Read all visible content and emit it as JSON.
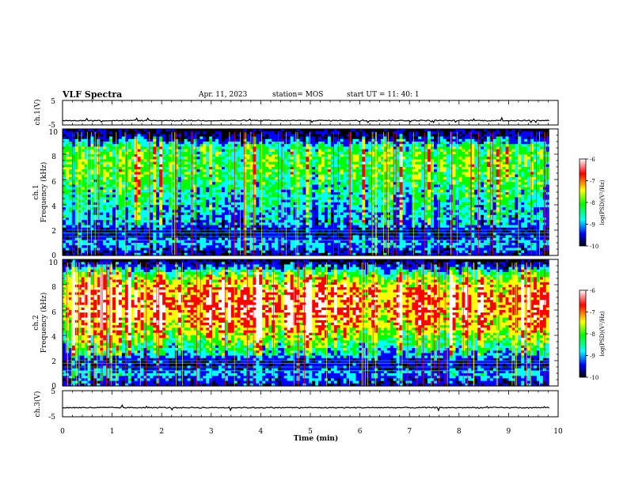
{
  "header": {
    "title": "VLF Spectra",
    "date": "Apr. 11, 2023",
    "station": "station= MOS",
    "start": "start  UT =   11: 40: 1"
  },
  "chart_data": [
    {
      "type": "line",
      "name": "ch1-waveform",
      "ylabel": "ch.1(V)",
      "ylim": [
        -5,
        5
      ],
      "yticks": [
        "5",
        "-5"
      ],
      "baseline": -3.2
    },
    {
      "type": "heatmap",
      "name": "ch1-spectrogram",
      "ylabel_line1": "ch.1",
      "ylabel_line2": "Frequency  (kHz)",
      "ylim": [
        0,
        10
      ],
      "yticks": [
        "0",
        "2",
        "4",
        "6",
        "8",
        "10"
      ],
      "xlim": [
        0,
        10
      ],
      "cbar_ticks": [
        "-6",
        "-7",
        "-8",
        "-9",
        "-10"
      ],
      "cbar_label": "log(PSD)(V²/Hz)",
      "cbar_range": [
        -10,
        -6
      ],
      "level_profile": [
        [
          0,
          -9.6
        ],
        [
          0.5,
          -9.3
        ],
        [
          1.0,
          -8.9
        ],
        [
          1.5,
          -9.5
        ],
        [
          2.0,
          -9.6
        ],
        [
          2.4,
          -9.0
        ],
        [
          3.0,
          -8.9
        ],
        [
          5.0,
          -8.4
        ],
        [
          6.5,
          -8.0
        ],
        [
          8.0,
          -8.0
        ],
        [
          8.6,
          -8.3
        ],
        [
          9.3,
          -9.6
        ],
        [
          10,
          -10
        ]
      ]
    },
    {
      "type": "heatmap",
      "name": "ch2-spectrogram",
      "ylabel_line1": "ch.2",
      "ylabel_line2": "Frequency  (kHz)",
      "ylim": [
        0,
        10
      ],
      "yticks": [
        "0",
        "2",
        "4",
        "6",
        "8",
        "10"
      ],
      "xlim": [
        0,
        10
      ],
      "cbar_ticks": [
        "-6",
        "-7",
        "-8",
        "-9",
        "-10"
      ],
      "cbar_label": "log(PSD)(V²/Hz)",
      "cbar_range": [
        -10,
        -6
      ],
      "level_profile": [
        [
          0,
          -9.6
        ],
        [
          0.5,
          -9.2
        ],
        [
          1.0,
          -8.9
        ],
        [
          1.5,
          -9.5
        ],
        [
          2.0,
          -9.6
        ],
        [
          2.4,
          -8.8
        ],
        [
          3.0,
          -8.3
        ],
        [
          4.0,
          -7.6
        ],
        [
          5.0,
          -7.0
        ],
        [
          6.0,
          -6.7
        ],
        [
          7.0,
          -6.7
        ],
        [
          8.0,
          -7.1
        ],
        [
          8.8,
          -7.9
        ],
        [
          9.4,
          -9.2
        ],
        [
          10,
          -10
        ]
      ]
    },
    {
      "type": "line",
      "name": "ch3-waveform",
      "ylabel": "ch.3(V)",
      "ylim": [
        -5,
        5
      ],
      "yticks": [
        "5",
        "-5"
      ],
      "baseline": -1.5
    }
  ],
  "xaxis": {
    "label": "Time  (min)",
    "ticks": [
      "0",
      "1",
      "2",
      "3",
      "4",
      "5",
      "6",
      "7",
      "8",
      "9",
      "10"
    ],
    "data_end": 9.82
  },
  "colormap": [
    "#ffffff",
    "#ff0000",
    "#ffff00",
    "#00ff00",
    "#00ffff",
    "#0000ff",
    "#000000"
  ]
}
